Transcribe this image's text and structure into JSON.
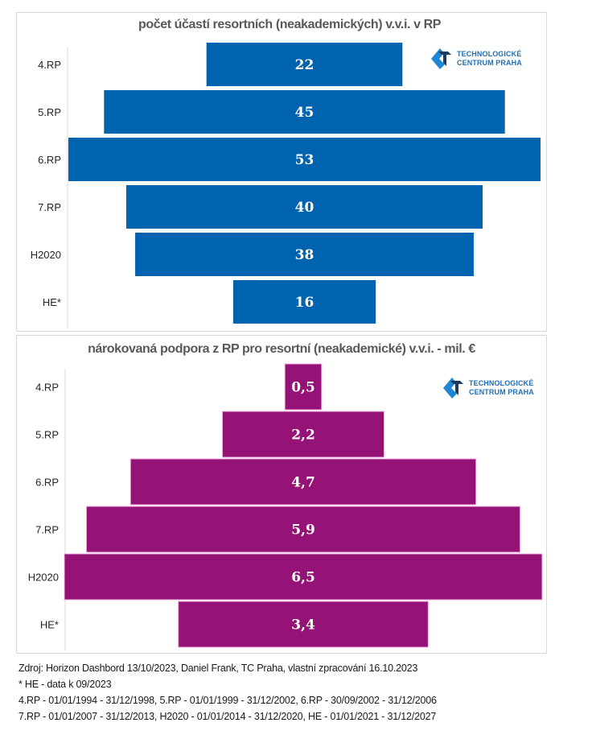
{
  "chart_data": [
    {
      "type": "bar",
      "orientation": "horizontal-centered",
      "title": "počet účastí resortních (neakademických)  v.v.i. v RP",
      "categories": [
        "4.RP",
        "5.RP",
        "6.RP",
        "7.RP",
        "H2020",
        "HE*"
      ],
      "values": [
        22,
        45,
        53,
        40,
        38,
        16
      ],
      "value_labels": [
        "22",
        "45",
        "53",
        "40",
        "38",
        "16"
      ],
      "color": "#0063B0",
      "xlabel": "",
      "ylabel": "",
      "grid": false,
      "legend": "none"
    },
    {
      "type": "bar",
      "orientation": "horizontal-centered",
      "title": "nárokovaná podpora z RP pro resortní (neakademické) v.v.i.  - mil. €",
      "categories": [
        "4.RP",
        "5.RP",
        "6.RP",
        "7.RP",
        "H2020",
        "HE*"
      ],
      "values": [
        0.5,
        2.2,
        4.7,
        5.9,
        6.5,
        3.4
      ],
      "value_labels": [
        "0,5",
        "2,2",
        "4,7",
        "5,9",
        "6,5",
        "3,4"
      ],
      "color": "#951277",
      "border_color": "#F0B4E4",
      "xlabel": "",
      "ylabel": "mil. €",
      "grid": false,
      "legend": "none"
    }
  ],
  "logo": {
    "line1": "TECHNOLOGICKÉ",
    "line2": "CENTRUM PRAHA",
    "icon": "tc-praha-logo-icon",
    "color_light": "#1F86D1",
    "color_dark": "#1E3A5F"
  },
  "footnotes": [
    "Zdroj: Horizon Dashbord 13/10/2023, Daniel Frank, TC Praha, vlastní zpracování 16.10.2023",
    "* HE - data k 09/2023",
    "4.RP - 01/01/1994 - 31/12/1998, 5.RP - 01/01/1999 - 31/12/2002, 6.RP - 30/09/2002 - 31/12/2006",
    "7.RP - 01/01/2007 - 31/12/2013, H2020 -  01/01/2014 - 31/12/2020, HE - 01/01/2021 - 31/12/2027"
  ]
}
